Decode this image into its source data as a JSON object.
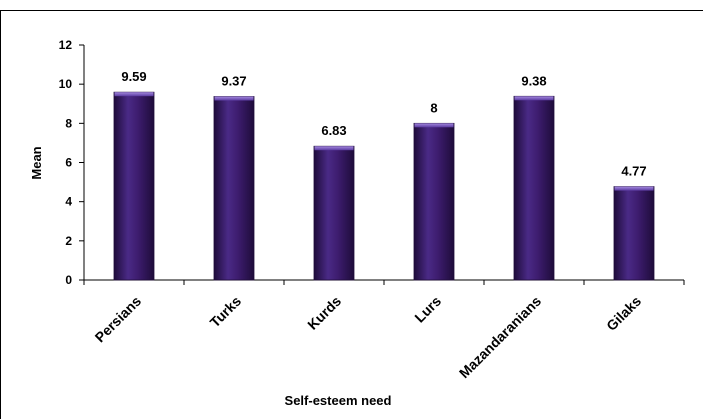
{
  "chart_data": {
    "type": "bar",
    "categories": [
      "Persians",
      "Turks",
      "Kurds",
      "Lurs",
      "Mazandaranians",
      "Gilaks"
    ],
    "values": [
      9.59,
      9.37,
      6.83,
      8,
      9.38,
      4.77
    ],
    "data_labels": [
      "9.59",
      "9.37",
      "6.83",
      "8",
      "9.38",
      "4.77"
    ],
    "xlabel": "Self-esteem need",
    "ylabel": "Mean",
    "ylim": [
      0,
      12
    ],
    "yticks": [
      0,
      2,
      4,
      6,
      8,
      10,
      12
    ],
    "grid": false,
    "legend": "none",
    "colors": {
      "bar": "#3d1c6e",
      "bar_highlight": "#7a52c4",
      "bar_shadow": "#1e0c3a"
    }
  }
}
